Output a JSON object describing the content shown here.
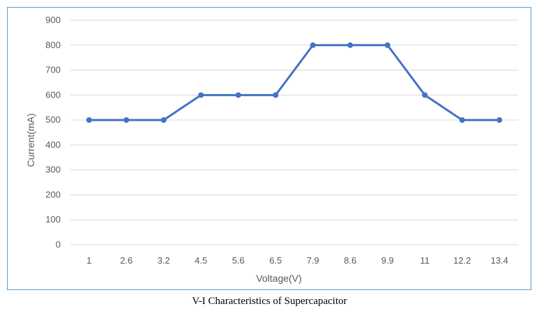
{
  "caption": "V-I Characteristics of Supercapacitor",
  "chart_data": {
    "type": "line",
    "categories": [
      "1",
      "2.6",
      "3.2",
      "4.5",
      "5.6",
      "6.5",
      "7.9",
      "8.6",
      "9.9",
      "11",
      "12.2",
      "13.4"
    ],
    "series": [
      {
        "values": [
          500,
          500,
          500,
          600,
          600,
          600,
          800,
          800,
          800,
          600,
          500,
          500
        ]
      }
    ],
    "xlabel": "Voltage(V)",
    "ylabel": "Current(mA)",
    "ylim": [
      0,
      900
    ],
    "yticks": [
      0,
      100,
      200,
      300,
      400,
      500,
      600,
      700,
      800,
      900
    ],
    "grid": true,
    "line_color": "#4472c4",
    "grid_color": "#d9d9d9"
  }
}
